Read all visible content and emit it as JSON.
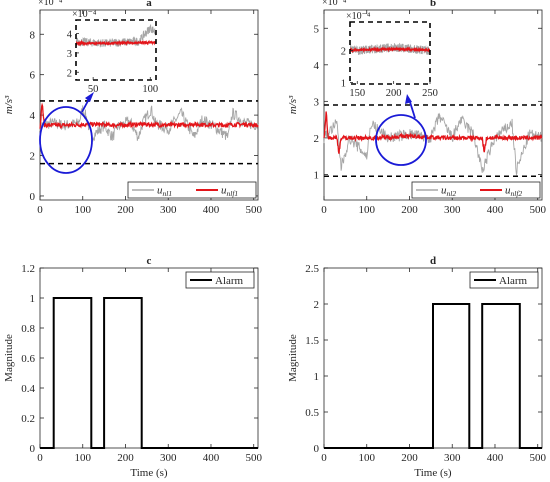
{
  "chart_data": [
    {
      "panel": "a",
      "type": "line",
      "title": "a",
      "ylabel": "m/s³",
      "xlabel": "",
      "xlim": [
        0,
        510
      ],
      "ylim": [
        -0.2,
        9.2
      ],
      "y_exponent": "×10⁻⁴",
      "xticks": [
        0,
        100,
        200,
        300,
        400,
        500
      ],
      "yticks": [
        0,
        2,
        4,
        6,
        8
      ],
      "grid": false,
      "legend": {
        "location": "bottom-right",
        "orientation": "horizontal"
      },
      "threshold_upper": 4.7,
      "threshold_lower": 1.6,
      "series": [
        {
          "name": "u_nl1",
          "name_main": "u",
          "name_sub": "nl1",
          "color": "#a6a6a6",
          "points": [
            [
              0,
              3.5
            ],
            [
              30,
              3.6
            ],
            [
              60,
              3.5
            ],
            [
              90,
              3.6
            ],
            [
              100,
              4.3
            ],
            [
              110,
              3.8
            ],
            [
              120,
              2.9
            ],
            [
              150,
              3.5
            ],
            [
              170,
              2.9
            ],
            [
              180,
              3.4
            ],
            [
              210,
              3.7
            ],
            [
              230,
              2.9
            ],
            [
              240,
              3.6
            ],
            [
              260,
              4.3
            ],
            [
              270,
              3.6
            ],
            [
              300,
              3.3
            ],
            [
              330,
              4.1
            ],
            [
              360,
              2.9
            ],
            [
              380,
              3.8
            ],
            [
              410,
              3.4
            ],
            [
              440,
              2.9
            ],
            [
              450,
              4.1
            ],
            [
              480,
              3.6
            ],
            [
              510,
              3.5
            ]
          ]
        },
        {
          "name": "u_nlf1",
          "name_main": "u",
          "name_sub": "nlf1",
          "color": "#e3151a",
          "points": [
            [
              0,
              3.4
            ],
            [
              5,
              4.6
            ],
            [
              10,
              3.5
            ],
            [
              60,
              3.5
            ],
            [
              120,
              3.55
            ],
            [
              180,
              3.5
            ],
            [
              240,
              3.55
            ],
            [
              300,
              3.5
            ],
            [
              360,
              3.55
            ],
            [
              420,
              3.5
            ],
            [
              480,
              3.55
            ],
            [
              510,
              3.5
            ]
          ]
        }
      ],
      "inset": {
        "xlim": [
          35,
          105
        ],
        "ylim": [
          1.6,
          4.7
        ],
        "y_exponent": "×10⁻⁴",
        "xticks": [
          50,
          100
        ],
        "yticks": [
          2,
          3,
          4
        ]
      },
      "annotation": "blue ellipse marking the zoomed region, with arrow to inset"
    },
    {
      "panel": "b",
      "type": "line",
      "title": "b",
      "ylabel": "m/s³",
      "xlabel": "",
      "xlim": [
        0,
        510
      ],
      "ylim": [
        0.3,
        5.5
      ],
      "y_exponent": "×10⁻⁴",
      "xticks": [
        0,
        100,
        200,
        300,
        400,
        500
      ],
      "yticks": [
        1,
        2,
        3,
        4,
        5
      ],
      "grid": false,
      "legend": {
        "location": "bottom-right",
        "orientation": "horizontal"
      },
      "threshold_upper": 2.9,
      "threshold_lower": 0.95,
      "series": [
        {
          "name": "u_nl2",
          "name_main": "u",
          "name_sub": "nl2",
          "color": "#a6a6a6",
          "points": [
            [
              0,
              2.0
            ],
            [
              30,
              2.4
            ],
            [
              40,
              1.2
            ],
            [
              60,
              2.0
            ],
            [
              100,
              1.5
            ],
            [
              110,
              2.4
            ],
            [
              150,
              2.0
            ],
            [
              200,
              2.1
            ],
            [
              250,
              2.0
            ],
            [
              270,
              2.6
            ],
            [
              300,
              2.0
            ],
            [
              320,
              2.5
            ],
            [
              350,
              2.1
            ],
            [
              370,
              1.1
            ],
            [
              400,
              2.0
            ],
            [
              440,
              2.4
            ],
            [
              450,
              1.1
            ],
            [
              480,
              2.1
            ],
            [
              510,
              2.0
            ]
          ]
        },
        {
          "name": "u_nlf2",
          "name_main": "u",
          "name_sub": "nlf2",
          "color": "#e3151a",
          "points": [
            [
              0,
              2.0
            ],
            [
              5,
              2.7
            ],
            [
              10,
              2.0
            ],
            [
              30,
              2.0
            ],
            [
              35,
              1.6
            ],
            [
              40,
              2.0
            ],
            [
              120,
              2.0
            ],
            [
              200,
              2.05
            ],
            [
              280,
              2.0
            ],
            [
              370,
              2.0
            ],
            [
              375,
              1.6
            ],
            [
              380,
              2.0
            ],
            [
              450,
              2.0
            ],
            [
              510,
              2.0
            ]
          ]
        }
      ],
      "inset": {
        "xlim": [
          140,
          250
        ],
        "ylim": [
          0.95,
          2.9
        ],
        "y_exponent": "×10⁻⁴",
        "xticks": [
          150,
          200,
          250
        ],
        "yticks": [
          1,
          2
        ]
      },
      "annotation": "blue ellipse marking the zoomed region, with arrow to inset"
    },
    {
      "panel": "c",
      "type": "line",
      "title": "c",
      "xlabel": "Time (s)",
      "ylabel": "Magnitude",
      "xlim": [
        0,
        510
      ],
      "ylim": [
        0,
        1.2
      ],
      "xticks": [
        0,
        100,
        200,
        300,
        400,
        500
      ],
      "yticks": [
        0,
        0.2,
        0.4,
        0.6,
        0.8,
        1,
        1.2
      ],
      "grid": false,
      "legend": {
        "location": "top-right"
      },
      "series": [
        {
          "name": "Alarm",
          "color": "#000000",
          "x": [
            0,
            32,
            32,
            120,
            120,
            150,
            150,
            238,
            238,
            510
          ],
          "y": [
            0,
            0,
            1,
            1,
            0,
            0,
            1,
            1,
            0,
            0
          ]
        }
      ]
    },
    {
      "panel": "d",
      "type": "line",
      "title": "d",
      "xlabel": "Time (s)",
      "ylabel": "Magnitude",
      "xlim": [
        0,
        510
      ],
      "ylim": [
        0,
        2.5
      ],
      "xticks": [
        0,
        100,
        200,
        300,
        400,
        500
      ],
      "yticks": [
        0,
        0.5,
        1,
        1.5,
        2,
        2.5
      ],
      "grid": false,
      "legend": {
        "location": "top-right"
      },
      "series": [
        {
          "name": "Alarm",
          "color": "#000000",
          "x": [
            0,
            255,
            255,
            340,
            340,
            370,
            370,
            458,
            458,
            510
          ],
          "y": [
            0,
            0,
            2,
            2,
            0,
            0,
            2,
            2,
            0,
            0
          ]
        }
      ]
    }
  ],
  "style": {
    "ellipse_color": "#1a1ad6",
    "threshold_color": "#000000",
    "axis_color": "#262626"
  }
}
